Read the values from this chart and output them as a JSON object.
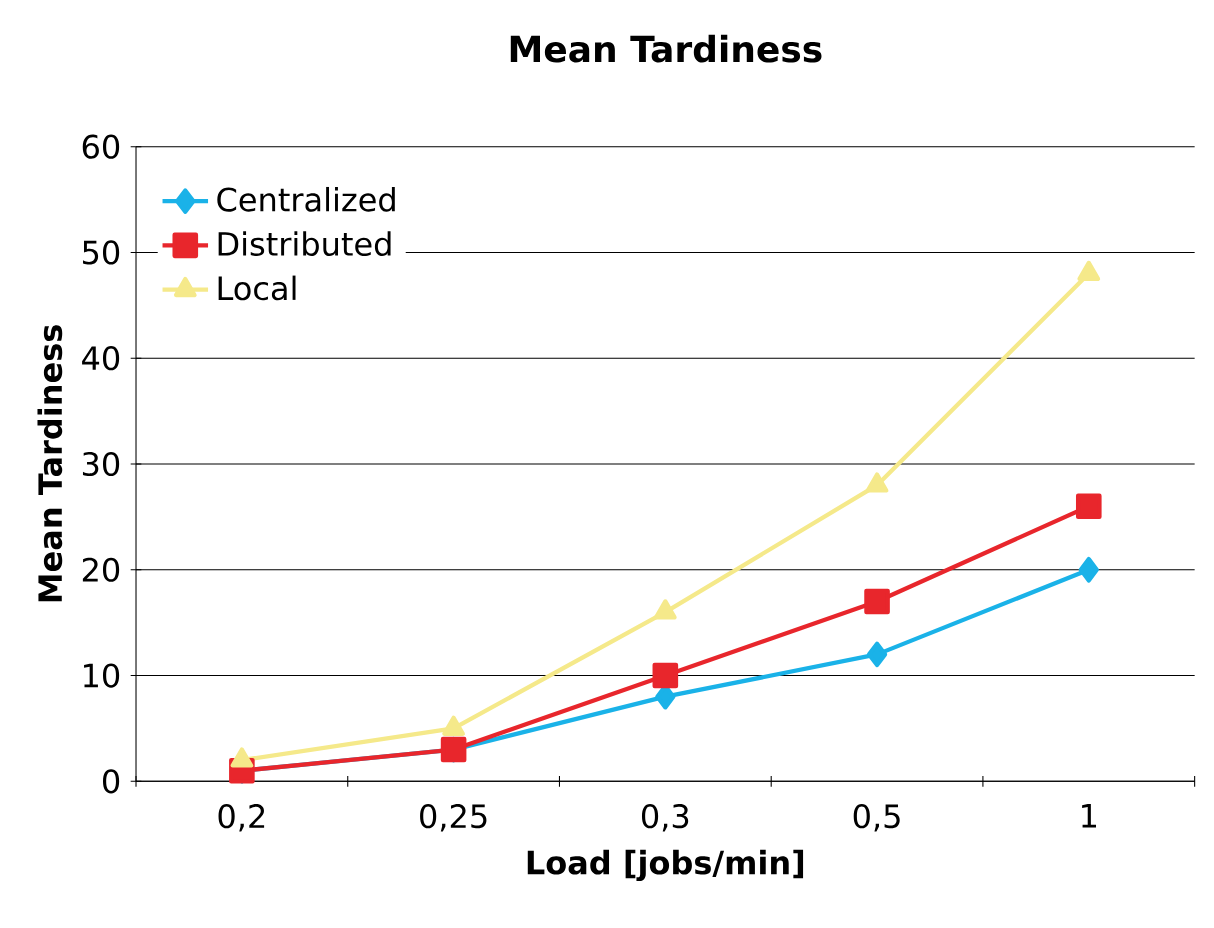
{
  "chart_data": {
    "type": "line",
    "title": "Mean Tardiness",
    "xlabel": "Load [jobs/min]",
    "ylabel": "Mean Tardiness",
    "categories": [
      "0,2",
      "0,25",
      "0,3",
      "0,5",
      "1"
    ],
    "series": [
      {
        "name": "Centralized",
        "color": "#1ab2e8",
        "marker": "diamond",
        "values": [
          1,
          3,
          8,
          12,
          20
        ]
      },
      {
        "name": "Distributed",
        "color": "#e8262c",
        "marker": "square",
        "values": [
          1,
          3,
          10,
          17,
          26
        ]
      },
      {
        "name": "Local",
        "color": "#f5e98a",
        "marker": "triangle",
        "values": [
          2,
          5,
          16,
          28,
          48
        ]
      }
    ],
    "ylim": [
      0,
      60
    ],
    "yticks": [
      0,
      10,
      20,
      30,
      40,
      50,
      60
    ],
    "grid": "y",
    "legend": "top left",
    "line_style": "solid"
  }
}
